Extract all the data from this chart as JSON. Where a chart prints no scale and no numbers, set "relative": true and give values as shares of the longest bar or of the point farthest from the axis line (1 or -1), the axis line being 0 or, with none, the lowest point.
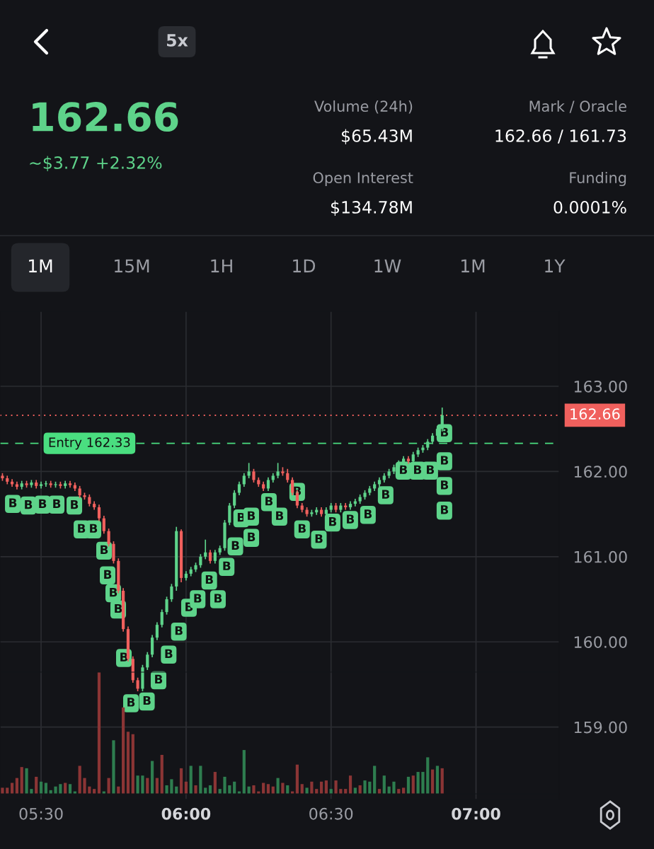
{
  "chart_data": [
    {
      "type": "other",
      "annotations": [
        "5x",
        "162.66",
        "~$3.77 +2.32%",
        "Volume (24h)",
        "$65.43M",
        "Mark / Oracle",
        "162.66 / 161.73",
        "Open Interest",
        "$134.78M",
        "Funding",
        "0.0001%",
        "1M",
        "15M",
        "1H",
        "1D",
        "1W",
        "1M",
        "1Y"
      ]
    },
    {
      "type": "candlestick",
      "grid": true,
      "tick_labels": "y",
      "xlim": [
        5.3583,
        7.2867
      ],
      "ylim": [
        158.15,
        163.88
      ],
      "xticks": [
        {
          "value": 5.5,
          "label": null
        },
        {
          "value": 6,
          "label": null
        },
        {
          "value": 6.5,
          "label": null
        },
        {
          "value": 7,
          "label": null
        }
      ],
      "yticks": [
        {
          "value": 159,
          "label": "159.00"
        },
        {
          "value": 160,
          "label": "160.00"
        },
        {
          "value": 161,
          "label": "161.00"
        },
        {
          "value": 162,
          "label": "162.00"
        },
        {
          "value": 163,
          "label": "163.00"
        }
      ],
      "x": [
        5.3667,
        5.3833,
        5.4,
        5.4167,
        5.4333,
        5.45,
        5.4667,
        5.4833,
        5.5,
        5.5167,
        5.5333,
        5.55,
        5.5667,
        5.5833,
        5.6,
        5.6167,
        5.6333,
        5.65,
        5.6667,
        5.6833,
        5.7,
        5.7167,
        5.7333,
        5.75,
        5.7667,
        5.7833,
        5.8,
        5.8167,
        5.8333,
        5.85,
        5.8667,
        5.8833,
        5.9,
        5.9167,
        5.9333,
        5.95,
        5.9667,
        5.9833,
        6,
        6.0167,
        6.0333,
        6.05,
        6.0667,
        6.0833,
        6.1,
        6.1167,
        6.1333,
        6.15,
        6.1667,
        6.1833,
        6.2,
        6.2167,
        6.2333,
        6.25,
        6.2667,
        6.2833,
        6.3,
        6.3167,
        6.3333,
        6.35,
        6.3667,
        6.3833,
        6.4,
        6.4167,
        6.4333,
        6.45,
        6.4667,
        6.4833,
        6.5,
        6.5167,
        6.5333,
        6.55,
        6.5667,
        6.5833,
        6.6,
        6.6167,
        6.6333,
        6.65,
        6.6667,
        6.6833,
        6.7,
        6.7167,
        6.7333,
        6.75,
        6.7667,
        6.7833,
        6.8,
        6.8167,
        6.8333,
        6.85,
        6.8667,
        6.8833
      ],
      "ohlc": [
        [
          161.95,
          161.98,
          161.89,
          161.92
        ],
        [
          161.92,
          161.95,
          161.85,
          161.88
        ],
        [
          161.88,
          161.91,
          161.82,
          161.85
        ],
        [
          161.85,
          161.88,
          161.79,
          161.82
        ],
        [
          161.82,
          161.89,
          161.79,
          161.86
        ],
        [
          161.86,
          161.89,
          161.81,
          161.84
        ],
        [
          161.84,
          161.9,
          161.81,
          161.87
        ],
        [
          161.87,
          161.9,
          161.8,
          161.83
        ],
        [
          161.83,
          161.88,
          161.8,
          161.85
        ],
        [
          161.85,
          161.89,
          161.82,
          161.86
        ],
        [
          161.86,
          161.89,
          161.81,
          161.84
        ],
        [
          161.84,
          161.88,
          161.81,
          161.85
        ],
        [
          161.85,
          161.88,
          161.8,
          161.83
        ],
        [
          161.83,
          161.89,
          161.8,
          161.86
        ],
        [
          161.86,
          161.89,
          161.81,
          161.84
        ],
        [
          161.84,
          161.87,
          161.77,
          161.8
        ],
        [
          161.8,
          161.83,
          161.69,
          161.72
        ],
        [
          161.72,
          161.75,
          161.67,
          161.7
        ],
        [
          161.7,
          161.73,
          161.59,
          161.62
        ],
        [
          161.62,
          161.65,
          161.55,
          161.58
        ],
        [
          161.58,
          161.61,
          161.42,
          161.45
        ],
        [
          161.45,
          161.48,
          161.27,
          161.3
        ],
        [
          161.3,
          161.33,
          161.12,
          161.15
        ],
        [
          161.15,
          161.18,
          160.92,
          160.95
        ],
        [
          160.95,
          160.98,
          160.57,
          160.6
        ],
        [
          160.6,
          160.63,
          160.12,
          160.15
        ],
        [
          160.15,
          160.18,
          159.77,
          159.8
        ],
        [
          159.8,
          159.83,
          159.52,
          159.55
        ],
        [
          159.55,
          159.58,
          159.42,
          159.45
        ],
        [
          159.45,
          159.73,
          159.42,
          159.7
        ],
        [
          159.7,
          159.88,
          159.67,
          159.85
        ],
        [
          159.85,
          160.08,
          159.82,
          160.05
        ],
        [
          160.05,
          160.23,
          160.02,
          160.2
        ],
        [
          160.2,
          160.38,
          160.17,
          160.35
        ],
        [
          160.35,
          160.53,
          160.32,
          160.5
        ],
        [
          160.5,
          160.68,
          160.47,
          160.65
        ],
        [
          160.65,
          161.35,
          160.6,
          161.3
        ],
        [
          161.3,
          161.32,
          160.7,
          160.75
        ],
        [
          160.75,
          160.83,
          160.72,
          160.8
        ],
        [
          160.8,
          160.88,
          160.77,
          160.85
        ],
        [
          160.85,
          160.93,
          160.82,
          160.9
        ],
        [
          160.9,
          161.03,
          160.87,
          161.0
        ],
        [
          161.0,
          161.2,
          160.97,
          161.05
        ],
        [
          161.05,
          161.08,
          160.92,
          160.95
        ],
        [
          160.95,
          161.08,
          160.92,
          161.05
        ],
        [
          161.05,
          161.13,
          161.02,
          161.1
        ],
        [
          161.1,
          161.43,
          161.07,
          161.4
        ],
        [
          161.4,
          161.63,
          161.37,
          161.6
        ],
        [
          161.6,
          161.78,
          161.57,
          161.75
        ],
        [
          161.75,
          161.88,
          161.72,
          161.85
        ],
        [
          161.85,
          161.98,
          161.82,
          161.95
        ],
        [
          161.95,
          162.1,
          161.92,
          162.0
        ],
        [
          162.0,
          162.03,
          161.87,
          161.9
        ],
        [
          161.9,
          161.93,
          161.82,
          161.85
        ],
        [
          161.85,
          161.88,
          161.77,
          161.8
        ],
        [
          161.8,
          161.93,
          161.77,
          161.9
        ],
        [
          161.9,
          161.98,
          161.87,
          161.95
        ],
        [
          161.95,
          162.1,
          161.92,
          162.0
        ],
        [
          162.0,
          162.05,
          161.95,
          161.98
        ],
        [
          161.98,
          162.03,
          161.87,
          161.9
        ],
        [
          161.9,
          161.93,
          161.72,
          161.75
        ],
        [
          161.75,
          161.78,
          161.57,
          161.6
        ],
        [
          161.6,
          161.63,
          161.52,
          161.55
        ],
        [
          161.55,
          161.58,
          161.47,
          161.5
        ],
        [
          161.5,
          161.55,
          161.47,
          161.52
        ],
        [
          161.52,
          161.58,
          161.49,
          161.55
        ],
        [
          161.55,
          161.58,
          161.47,
          161.5
        ],
        [
          161.5,
          161.58,
          161.47,
          161.55
        ],
        [
          161.55,
          161.63,
          161.52,
          161.6
        ],
        [
          161.6,
          161.63,
          161.52,
          161.55
        ],
        [
          161.55,
          161.63,
          161.52,
          161.6
        ],
        [
          161.6,
          161.63,
          161.55,
          161.58
        ],
        [
          161.58,
          161.65,
          161.55,
          161.62
        ],
        [
          161.62,
          161.68,
          161.59,
          161.65
        ],
        [
          161.65,
          161.73,
          161.62,
          161.7
        ],
        [
          161.7,
          161.78,
          161.67,
          161.75
        ],
        [
          161.75,
          161.83,
          161.72,
          161.8
        ],
        [
          161.8,
          161.88,
          161.77,
          161.85
        ],
        [
          161.85,
          161.93,
          161.82,
          161.9
        ],
        [
          161.9,
          161.98,
          161.87,
          161.95
        ],
        [
          161.95,
          162.03,
          161.92,
          162.0
        ],
        [
          162.0,
          162.08,
          161.97,
          162.05
        ],
        [
          162.05,
          162.13,
          162.02,
          162.1
        ],
        [
          162.1,
          162.18,
          162.07,
          162.15
        ],
        [
          162.15,
          162.18,
          162.09,
          162.12
        ],
        [
          162.12,
          162.23,
          162.09,
          162.2
        ],
        [
          162.2,
          162.28,
          162.17,
          162.25
        ],
        [
          162.25,
          162.31,
          162.22,
          162.28
        ],
        [
          162.28,
          162.38,
          162.25,
          162.35
        ],
        [
          162.35,
          162.45,
          162.32,
          162.42
        ],
        [
          162.42,
          162.53,
          162.39,
          162.5
        ],
        [
          162.5,
          162.75,
          162.47,
          162.66
        ]
      ],
      "ref_lines": [
        {
          "axis": "y",
          "value": 162.33,
          "label": "Entry 162.33",
          "color": "#4ade80",
          "line_style": "dashed"
        },
        {
          "axis": "y",
          "value": 162.66,
          "label": "162.66",
          "color": "#f0605d",
          "line_style": "dotted"
        }
      ],
      "annotations": [
        {
          "text": "B",
          "x": 5.4024,
          "y": 161.62
        },
        {
          "text": "B",
          "x": 5.456,
          "y": 161.6
        },
        {
          "text": "B",
          "x": 5.5049,
          "y": 161.61
        },
        {
          "text": "B",
          "x": 5.5537,
          "y": 161.61
        },
        {
          "text": "B",
          "x": 5.6147,
          "y": 161.6
        },
        {
          "text": "B",
          "x": 5.6391,
          "y": 161.32
        },
        {
          "text": "B",
          "x": 5.6805,
          "y": 161.32
        },
        {
          "text": "B",
          "x": 5.7172,
          "y": 161.07
        },
        {
          "text": "B",
          "x": 5.7294,
          "y": 160.78
        },
        {
          "text": "B",
          "x": 5.7489,
          "y": 160.57
        },
        {
          "text": "B",
          "x": 5.766,
          "y": 160.38
        },
        {
          "text": "B",
          "x": 5.7855,
          "y": 159.81
        },
        {
          "text": "B",
          "x": 5.8099,
          "y": 159.28
        },
        {
          "text": "B",
          "x": 5.865,
          "y": 159.3
        },
        {
          "text": "B",
          "x": 5.905,
          "y": 159.55
        },
        {
          "text": "B",
          "x": 5.94,
          "y": 159.85
        },
        {
          "text": "B",
          "x": 5.975,
          "y": 160.12
        },
        {
          "text": "B",
          "x": 6.01,
          "y": 160.4
        },
        {
          "text": "B",
          "x": 6.04,
          "y": 160.5
        },
        {
          "text": "B",
          "x": 6.08,
          "y": 160.72
        },
        {
          "text": "B",
          "x": 6.14,
          "y": 160.88
        },
        {
          "text": "B",
          "x": 6.17,
          "y": 161.12
        },
        {
          "text": "B",
          "x": 6.11,
          "y": 160.5
        },
        {
          "text": "B",
          "x": 6.19,
          "y": 161.45
        },
        {
          "text": "B",
          "x": 6.225,
          "y": 161.22
        },
        {
          "text": "B",
          "x": 6.2247,
          "y": 161.47
        },
        {
          "text": "B",
          "x": 6.2857,
          "y": 161.64
        },
        {
          "text": "B",
          "x": 6.3223,
          "y": 161.47
        },
        {
          "text": "B",
          "x": 6.3833,
          "y": 161.76
        },
        {
          "text": "B",
          "x": 6.4,
          "y": 161.32
        },
        {
          "text": "B",
          "x": 6.458,
          "y": 161.2
        },
        {
          "text": "B",
          "x": 6.5053,
          "y": 161.4
        },
        {
          "text": "B",
          "x": 6.5663,
          "y": 161.43
        },
        {
          "text": "B",
          "x": 6.6273,
          "y": 161.49
        },
        {
          "text": "B",
          "x": 6.6883,
          "y": 161.72
        },
        {
          "text": "B",
          "x": 6.7493,
          "y": 162.01
        },
        {
          "text": "B",
          "x": 6.7982,
          "y": 162.01
        },
        {
          "text": "B",
          "x": 6.8421,
          "y": 162.01
        },
        {
          "text": "B",
          "x": 6.891,
          "y": 162.45
        },
        {
          "text": "B",
          "x": 6.891,
          "y": 162.12
        },
        {
          "text": "B",
          "x": 6.891,
          "y": 161.83
        },
        {
          "text": "B",
          "x": 6.891,
          "y": 161.54
        }
      ]
    },
    {
      "type": "bar",
      "relative": true,
      "grid": "x",
      "tick_labels": "x",
      "xlim": [
        5.3583,
        7.2867
      ],
      "xticks": [
        {
          "value": 5.5,
          "label": "05:30"
        },
        {
          "value": 6,
          "label": "06:00"
        },
        {
          "value": 6.5,
          "label": "06:30"
        },
        {
          "value": 7,
          "label": "07:00"
        }
      ],
      "x": [
        5.3667,
        5.3833,
        5.4,
        5.4167,
        5.4333,
        5.45,
        5.4667,
        5.4833,
        5.5,
        5.5167,
        5.5333,
        5.55,
        5.5667,
        5.5833,
        5.6,
        5.6167,
        5.6333,
        5.65,
        5.6667,
        5.6833,
        5.7,
        5.7167,
        5.7333,
        5.75,
        5.7667,
        5.7833,
        5.8,
        5.8167,
        5.8333,
        5.85,
        5.8667,
        5.8833,
        5.9,
        5.9167,
        5.9333,
        5.95,
        5.9667,
        5.9833,
        6,
        6.0167,
        6.0333,
        6.05,
        6.0667,
        6.0833,
        6.1,
        6.1167,
        6.1333,
        6.15,
        6.1667,
        6.1833,
        6.2,
        6.2167,
        6.2333,
        6.25,
        6.2667,
        6.2833,
        6.3,
        6.3167,
        6.3333,
        6.35,
        6.3667,
        6.3833,
        6.4,
        6.4167,
        6.4333,
        6.45,
        6.4667,
        6.4833,
        6.5,
        6.5167,
        6.5333,
        6.55,
        6.5667,
        6.5833,
        6.6,
        6.6167,
        6.6333,
        6.65,
        6.6667,
        6.6833,
        6.7,
        6.7167,
        6.7333,
        6.75,
        6.7667,
        6.7833,
        6.8,
        6.8167,
        6.8333,
        6.85,
        6.8667,
        6.8833
      ],
      "values": [
        0.05,
        0.05,
        0.09,
        0.13,
        0.22,
        0.21,
        0.04,
        0.14,
        0.1,
        0.09,
        0.03,
        0.06,
        0.08,
        0.09,
        0.08,
        0.02,
        0.23,
        0.13,
        0.06,
        0.04,
        1,
        0.02,
        0.13,
        0.44,
        0.06,
        0.71,
        0.51,
        0.49,
        0.15,
        0.15,
        0.13,
        0.27,
        0.13,
        0.32,
        0.07,
        0.12,
        0.06,
        0.21,
        0.1,
        0.23,
        0.07,
        0.23,
        0.05,
        0.07,
        0.18,
        0.04,
        0.14,
        0.07,
        0.1,
        0.02,
        0.36,
        0.06,
        0.07,
        0.02,
        0.09,
        0.08,
        0.06,
        0.13,
        0.09,
        0.07,
        0.02,
        0.24,
        0.08,
        0.05,
        0.1,
        0.04,
        0.1,
        0.11,
        0.04,
        0.11,
        0.04,
        0.04,
        0.15,
        0.05,
        0.07,
        0.11,
        0.1,
        0.23,
        0.04,
        0.15,
        0.06,
        0.1,
        0.04,
        0.05,
        0.14,
        0.15,
        0.18,
        0.18,
        0.3,
        0.2,
        0.23,
        0.21
      ],
      "colors": [
        "#8b3535",
        "#8b3535",
        "#8b3535",
        "#8b3535",
        "#8b3535",
        "#2e7d4f",
        "#2e7d4f",
        "#8b3535",
        "#2e7d4f",
        "#2e7d4f",
        "#2e7d4f",
        "#2e7d4f",
        "#2e7d4f",
        "#8b3535",
        "#2e7d4f",
        "#2e7d4f",
        "#8b3535",
        "#8b3535",
        "#8b3535",
        "#8b3535",
        "#8b3535",
        "#2e7d4f",
        "#8b3535",
        "#2e7d4f",
        "#8b3535",
        "#8b3535",
        "#8b3535",
        "#8b3535",
        "#2e7d4f",
        "#2e7d4f",
        "#8b3535",
        "#2e7d4f",
        "#8b3535",
        "#8b3535",
        "#2e7d4f",
        "#2e7d4f",
        "#2e7d4f",
        "#8b3535",
        "#8b3535",
        "#2e7d4f",
        "#8b3535",
        "#2e7d4f",
        "#2e7d4f",
        "#2e7d4f",
        "#8b3535",
        "#2e7d4f",
        "#2e7d4f",
        "#2e7d4f",
        "#2e7d4f",
        "#2e7d4f",
        "#2e7d4f",
        "#2e7d4f",
        "#8b3535",
        "#8b3535",
        "#8b3535",
        "#8b3535",
        "#8b3535",
        "#2e7d4f",
        "#8b3535",
        "#2e7d4f",
        "#8b3535",
        "#8b3535",
        "#8b3535",
        "#2e7d4f",
        "#8b3535",
        "#8b3535",
        "#8b3535",
        "#8b3535",
        "#2e7d4f",
        "#8b3535",
        "#8b3535",
        "#8b3535",
        "#8b3535",
        "#2e7d4f",
        "#8b3535",
        "#2e7d4f",
        "#2e7d4f",
        "#2e7d4f",
        "#8b3535",
        "#2e7d4f",
        "#2e7d4f",
        "#2e7d4f",
        "#8b3535",
        "#8b3535",
        "#2e7d4f",
        "#8b3535",
        "#2e7d4f",
        "#2e7d4f",
        "#2e7d4f",
        "#8b3535",
        "#2e7d4f",
        "#8b3535"
      ]
    }
  ]
}
